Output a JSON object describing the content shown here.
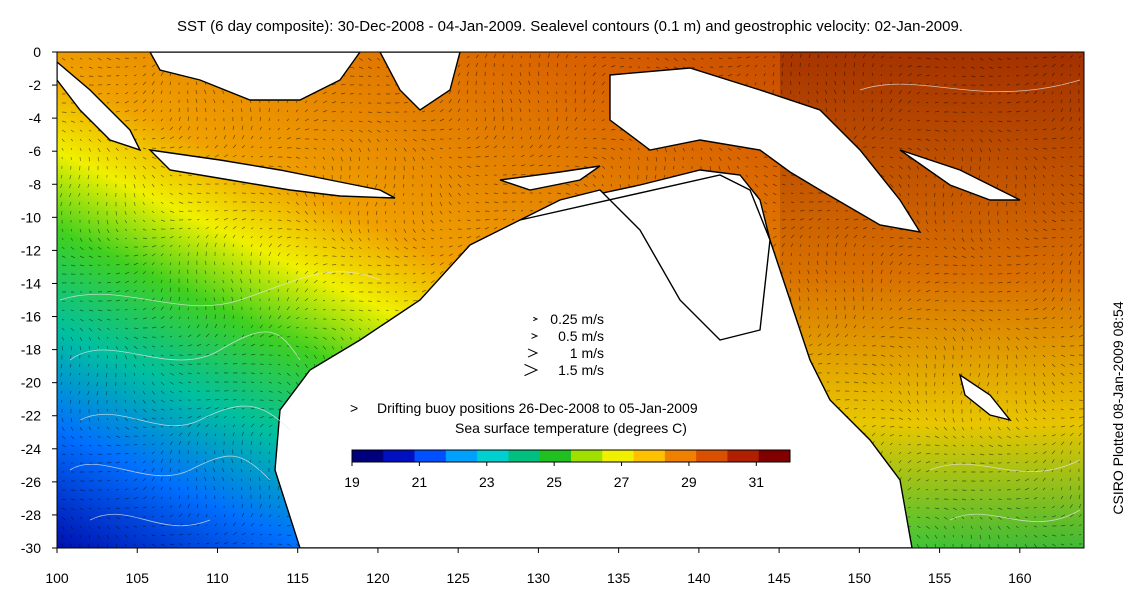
{
  "title": "SST (6 day composite): 30-Dec-2008 - 04-Jan-2009. Sealevel contours (0.1 m) and geostrophic velocity: 02-Jan-2009.",
  "side_credit": "CSIRO Plotted 08-Jan-2009 08:54",
  "axes": {
    "x_ticks": [
      100,
      105,
      110,
      115,
      120,
      125,
      130,
      135,
      140,
      145,
      150,
      155,
      160
    ],
    "y_ticks": [
      0,
      -2,
      -4,
      -6,
      -8,
      -10,
      -12,
      -14,
      -16,
      -18,
      -20,
      -22,
      -24,
      -26,
      -28,
      -30
    ],
    "lon_range": [
      100,
      164
    ],
    "lat_range": [
      -30,
      0
    ]
  },
  "velocity_legend": [
    {
      "label": "0.25 m/s",
      "speed": 0.25
    },
    {
      "label": "0.5 m/s",
      "speed": 0.5
    },
    {
      "label": "1 m/s",
      "speed": 1
    },
    {
      "label": "1.5 m/s",
      "speed": 1.5
    }
  ],
  "buoy_legend": {
    "marker": ">",
    "label": "Drifting buoy positions 26-Dec-2008 to 05-Jan-2009",
    "color": "#e020e0"
  },
  "colorbar": {
    "title": "Sea surface temperature (degrees C)",
    "min": 19,
    "max": 32,
    "ticks": [
      19,
      21,
      23,
      25,
      27,
      29,
      31
    ],
    "colors": [
      "#00007f",
      "#0010c0",
      "#0050ff",
      "#00a0ff",
      "#00d0d0",
      "#00c080",
      "#20c020",
      "#a0e000",
      "#f0f000",
      "#ffc000",
      "#f08000",
      "#d85000",
      "#b02000",
      "#800000"
    ]
  },
  "colors": {
    "land": "#ffffff",
    "coast": "#000000",
    "contour": "#e8e8e8",
    "vector": "#000000"
  }
}
